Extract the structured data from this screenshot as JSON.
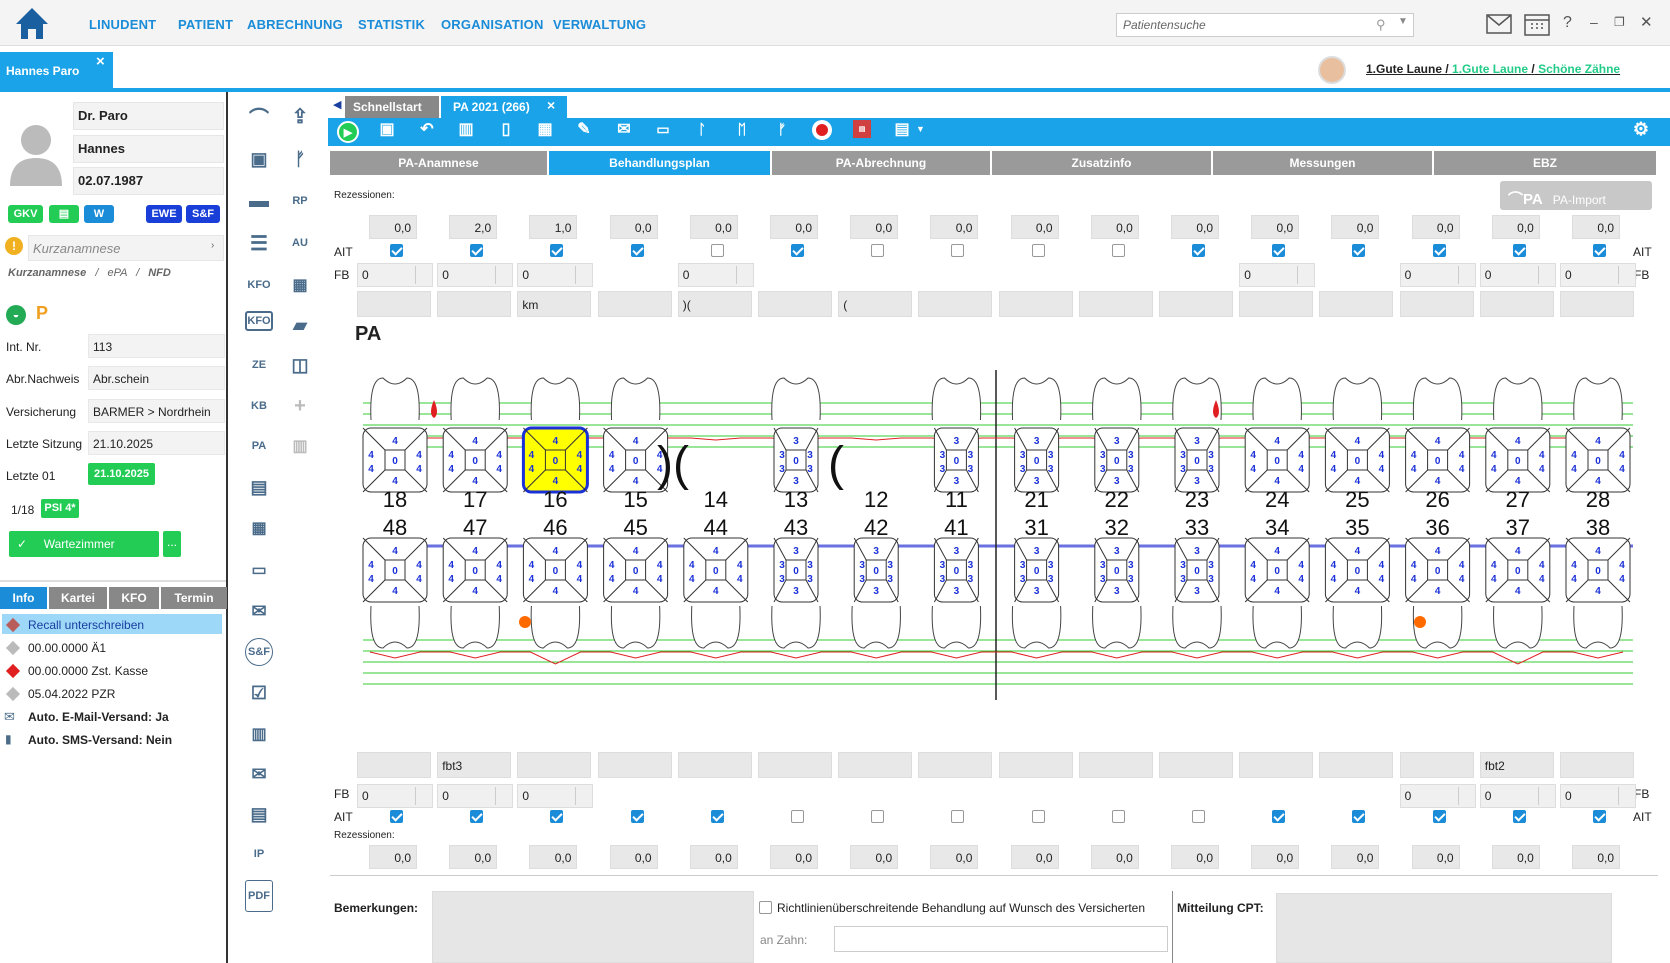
{
  "nav": {
    "items": [
      "LINUDENT",
      "PATIENT",
      "ABRECHNUNG",
      "STATISTIK",
      "ORGANISATION",
      "VERWALTUNG"
    ],
    "search_placeholder": "Patientensuche"
  },
  "patient_tab": {
    "label": "Hannes Paro",
    "close": "×"
  },
  "user": {
    "part1": "1.Gute Laune /",
    "part2": "1.Gute Laune",
    "part3": "/",
    "part4": "Schöne Zähne"
  },
  "patient": {
    "title_name": "Dr. Paro",
    "first_name": "Hannes",
    "dob": "02.07.1987",
    "badges": {
      "gkv": "GKV",
      "ewe": "EWE",
      "sf": "S&F"
    },
    "kurzanamnese_placeholder": "Kurzanamnese",
    "sublinks": [
      "Kurzanamnese",
      "/",
      "ePA",
      "/",
      "NFD"
    ],
    "p_label": "P",
    "rows": [
      {
        "label": "Int. Nr.",
        "value": "113"
      },
      {
        "label": "Abr.Nachweis",
        "value": "Abr.schein"
      },
      {
        "label": "Versicherung",
        "value": "BARMER > Nordrhein"
      },
      {
        "label": "Letzte Sitzung",
        "value": "21.10.2025"
      }
    ],
    "letzte01_label": "Letzte 01",
    "letzte01_value": "21.10.2025",
    "psi_count": "1/18",
    "psi_badge": "PSI 4*",
    "wartezimmer": "Wartezimmer",
    "more": "..."
  },
  "bottom_tabs": [
    "Info",
    "Kartei",
    "KFO",
    "Termin"
  ],
  "info_items": [
    {
      "text": "Recall unterschreiben",
      "color": "#b85c5c"
    },
    {
      "text": "00.00.0000 Ä1",
      "color": "#bbbbbb"
    },
    {
      "text": "00.00.0000 Zst. Kasse",
      "color": "#e02020"
    },
    {
      "text": "05.04.2022 PZR",
      "color": "#bbbbbb"
    },
    {
      "text": "Auto. E-Mail-Versand: Ja",
      "color": ""
    },
    {
      "text": "Auto. SMS-Versand: Nein",
      "color": ""
    }
  ],
  "icon_labels": {
    "kfo1": "KFO",
    "kfo2": "KFO",
    "ze": "ZE",
    "kb": "KB",
    "pa": "PA",
    "sf": "S&F",
    "ip": "IP",
    "pdf": "PDF",
    "rp": "RP",
    "au": "AU",
    "kim": "KIM"
  },
  "doc_tabs": [
    {
      "label": "Schnellstart",
      "active": false
    },
    {
      "label": "PA 2021 (266)",
      "active": true
    }
  ],
  "doc_tab_close": "×",
  "sub_tabs": [
    "PA-Anamnese",
    "Behandlungsplan",
    "PA-Abrechnung",
    "Zusatzinfo",
    "Messungen",
    "EBZ"
  ],
  "labels": {
    "rezessionen": "Rezessionen:",
    "ait": "AIT",
    "fb": "FB",
    "pa_title": "PA",
    "pa_import": "PA-Import",
    "bemerkungen": "Bemerkungen:",
    "richtlinien": "Richtlinienüberschreitende Behandlung auf Wunsch des Versicherten",
    "an_zahn": "an Zahn:",
    "mitteilung": "Mitteilung CPT:"
  },
  "upper": {
    "rezessionen": [
      "0,0",
      "2,0",
      "1,0",
      "0,0",
      "0,0",
      "0,0",
      "0,0",
      "0,0",
      "0,0",
      "0,0",
      "0,0",
      "0,0",
      "0,0",
      "0,0",
      "0,0",
      "0,0"
    ],
    "ait": [
      true,
      true,
      true,
      true,
      false,
      true,
      false,
      false,
      false,
      false,
      true,
      true,
      true,
      true,
      true,
      true
    ],
    "fb": [
      "0",
      "0",
      "0",
      "",
      "0",
      "",
      "",
      "",
      "",
      "",
      "",
      "0",
      "",
      "0",
      "0",
      "0"
    ],
    "text": [
      "",
      "",
      "km",
      "",
      ")(",
      "",
      "(",
      "",
      "",
      "",
      "",
      "",
      "",
      "",
      "",
      ""
    ],
    "teeth": [
      "18",
      "17",
      "16",
      "15",
      "14",
      "13",
      "12",
      "11",
      "21",
      "22",
      "23",
      "24",
      "25",
      "26",
      "27",
      "28"
    ]
  },
  "lower": {
    "teeth": [
      "48",
      "47",
      "46",
      "45",
      "44",
      "43",
      "42",
      "41",
      "31",
      "32",
      "33",
      "34",
      "35",
      "36",
      "37",
      "38"
    ],
    "text": [
      "",
      "fbt3",
      "",
      "",
      "",
      "",
      "",
      "",
      "",
      "",
      "",
      "",
      "",
      "",
      "fbt2",
      ""
    ],
    "fb": [
      "0",
      "0",
      "0",
      "",
      "",
      "",
      "",
      "",
      "",
      "",
      "",
      "",
      "",
      "0",
      "0",
      "0"
    ],
    "ait": [
      true,
      true,
      true,
      true,
      true,
      false,
      false,
      false,
      false,
      false,
      false,
      true,
      true,
      true,
      true,
      true
    ],
    "rezessionen": [
      "0,0",
      "0,0",
      "0,0",
      "0,0",
      "0,0",
      "0,0",
      "0,0",
      "0,0",
      "0,0",
      "0,0",
      "0,0",
      "0,0",
      "0,0",
      "0,0",
      "0,0",
      "0,0"
    ]
  },
  "colors": {
    "accent": "#1aa3e8",
    "green": "#22cc55",
    "yellow_selected": "#ffff00",
    "red_line": "#e02020",
    "green_line": "#33cc33"
  }
}
